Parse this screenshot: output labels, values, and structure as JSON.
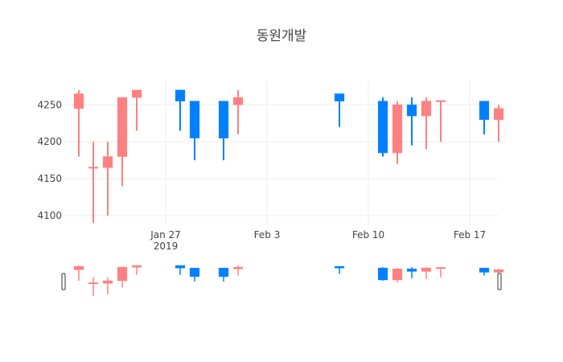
{
  "chart_data": {
    "type": "candlestick",
    "title": "동원개발",
    "increasing_color": "#FF8080",
    "decreasing_color": "#0080FF",
    "y_ticks": [
      4100,
      4150,
      4200,
      4250
    ],
    "ylim": [
      4087,
      4283
    ],
    "x_range": [
      "2019-01-20",
      "2019-02-19"
    ],
    "x_ticks": [
      {
        "date": "2019-01-27",
        "label": "Jan 27",
        "sublabel": "2019"
      },
      {
        "date": "2019-02-03",
        "label": "Feb 3",
        "sublabel": ""
      },
      {
        "date": "2019-02-10",
        "label": "Feb 10",
        "sublabel": ""
      },
      {
        "date": "2019-02-17",
        "label": "Feb 17",
        "sublabel": ""
      }
    ],
    "candles": [
      {
        "date": "2019-01-21",
        "open": 4245,
        "high": 4270,
        "low": 4180,
        "close": 4265
      },
      {
        "date": "2019-01-22",
        "open": 4165,
        "high": 4200,
        "low": 4090,
        "close": 4165
      },
      {
        "date": "2019-01-23",
        "open": 4165,
        "high": 4200,
        "low": 4100,
        "close": 4180
      },
      {
        "date": "2019-01-24",
        "open": 4180,
        "high": 4260,
        "low": 4140,
        "close": 4260
      },
      {
        "date": "2019-01-25",
        "open": 4260,
        "high": 4270,
        "low": 4215,
        "close": 4270
      },
      {
        "date": "2019-01-28",
        "open": 4270,
        "high": 4270,
        "low": 4215,
        "close": 4255
      },
      {
        "date": "2019-01-29",
        "open": 4255,
        "high": 4255,
        "low": 4175,
        "close": 4205
      },
      {
        "date": "2019-01-31",
        "open": 4255,
        "high": 4255,
        "low": 4175,
        "close": 4205
      },
      {
        "date": "2019-02-01",
        "open": 4250,
        "high": 4270,
        "low": 4210,
        "close": 4260
      },
      {
        "date": "2019-02-08",
        "open": 4265,
        "high": 4265,
        "low": 4220,
        "close": 4255
      },
      {
        "date": "2019-02-11",
        "open": 4255,
        "high": 4260,
        "low": 4180,
        "close": 4185
      },
      {
        "date": "2019-02-12",
        "open": 4185,
        "high": 4255,
        "low": 4170,
        "close": 4250
      },
      {
        "date": "2019-02-13",
        "open": 4250,
        "high": 4260,
        "low": 4195,
        "close": 4235
      },
      {
        "date": "2019-02-14",
        "open": 4235,
        "high": 4260,
        "low": 4190,
        "close": 4255
      },
      {
        "date": "2019-02-15",
        "open": 4255,
        "high": 4255,
        "low": 4200,
        "close": 4255
      },
      {
        "date": "2019-02-18",
        "open": 4255,
        "high": 4255,
        "low": 4210,
        "close": 4230
      },
      {
        "date": "2019-02-19",
        "open": 4230,
        "high": 4250,
        "low": 4200,
        "close": 4245
      }
    ],
    "rangeslider": true
  }
}
